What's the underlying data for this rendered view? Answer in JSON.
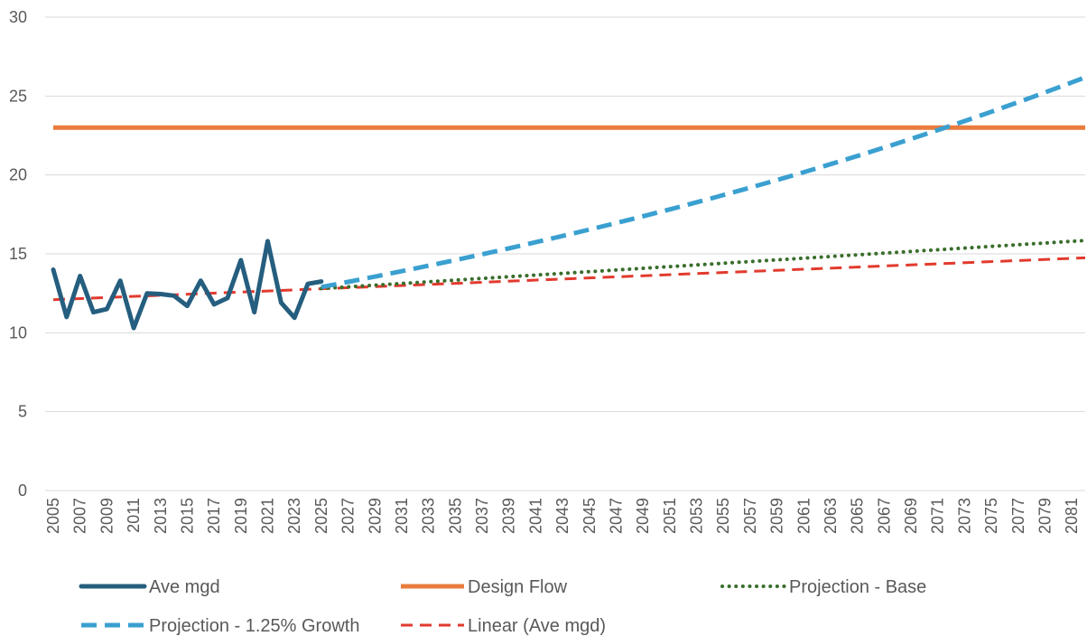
{
  "chart_data": {
    "type": "line",
    "title": "",
    "xlabel": "",
    "ylabel": "",
    "ylim": [
      0,
      30
    ],
    "yticks": [
      0,
      5,
      10,
      15,
      20,
      25,
      30
    ],
    "xrange": [
      2005,
      2082
    ],
    "xtick_labels": [
      "2005",
      "2007",
      "2009",
      "2011",
      "2013",
      "2015",
      "2017",
      "2019",
      "2021",
      "2023",
      "2025",
      "2027",
      "2029",
      "2031",
      "2033",
      "2035",
      "2037",
      "2039",
      "2041",
      "2043",
      "2045",
      "2047",
      "2049",
      "2051",
      "2053",
      "2055",
      "2057",
      "2059",
      "2061",
      "2063",
      "2065",
      "2067",
      "2069",
      "2071",
      "2073",
      "2075",
      "2077",
      "2079",
      "2081"
    ],
    "grid": "horizontal",
    "legend_position": "bottom",
    "series": [
      {
        "name": "Ave mgd",
        "color": "#255e7e",
        "style": "solid-thick",
        "x": [
          2005,
          2006,
          2007,
          2008,
          2009,
          2010,
          2011,
          2012,
          2013,
          2014,
          2015,
          2016,
          2017,
          2018,
          2019,
          2020,
          2021,
          2022,
          2023,
          2024,
          2025
        ],
        "values": [
          14.0,
          11.0,
          13.6,
          11.3,
          11.5,
          13.3,
          10.3,
          12.5,
          12.45,
          12.35,
          11.7,
          13.3,
          11.8,
          12.2,
          14.6,
          11.3,
          15.8,
          11.9,
          10.95,
          13.1,
          13.25
        ]
      },
      {
        "name": "Design Flow",
        "color": "#e97c3c",
        "style": "solid",
        "x": [
          2005,
          2082
        ],
        "values": [
          23.0,
          23.0
        ]
      },
      {
        "name": "Projection - Base",
        "color": "#3a6e2d",
        "style": "dotted",
        "x": [
          2025,
          2082
        ],
        "values": [
          12.8,
          15.85
        ]
      },
      {
        "name": "Projection - 1.25% Growth",
        "color": "#3aa0d0",
        "style": "dashed",
        "x": [
          2025,
          2082
        ],
        "growth_rate": 0.0125,
        "start_value": 12.9
      },
      {
        "name": "Linear (Ave mgd)",
        "color": "#e23a2e",
        "style": "dashed-thin",
        "x": [
          2005,
          2082
        ],
        "values": [
          12.1,
          14.75
        ]
      }
    ]
  }
}
